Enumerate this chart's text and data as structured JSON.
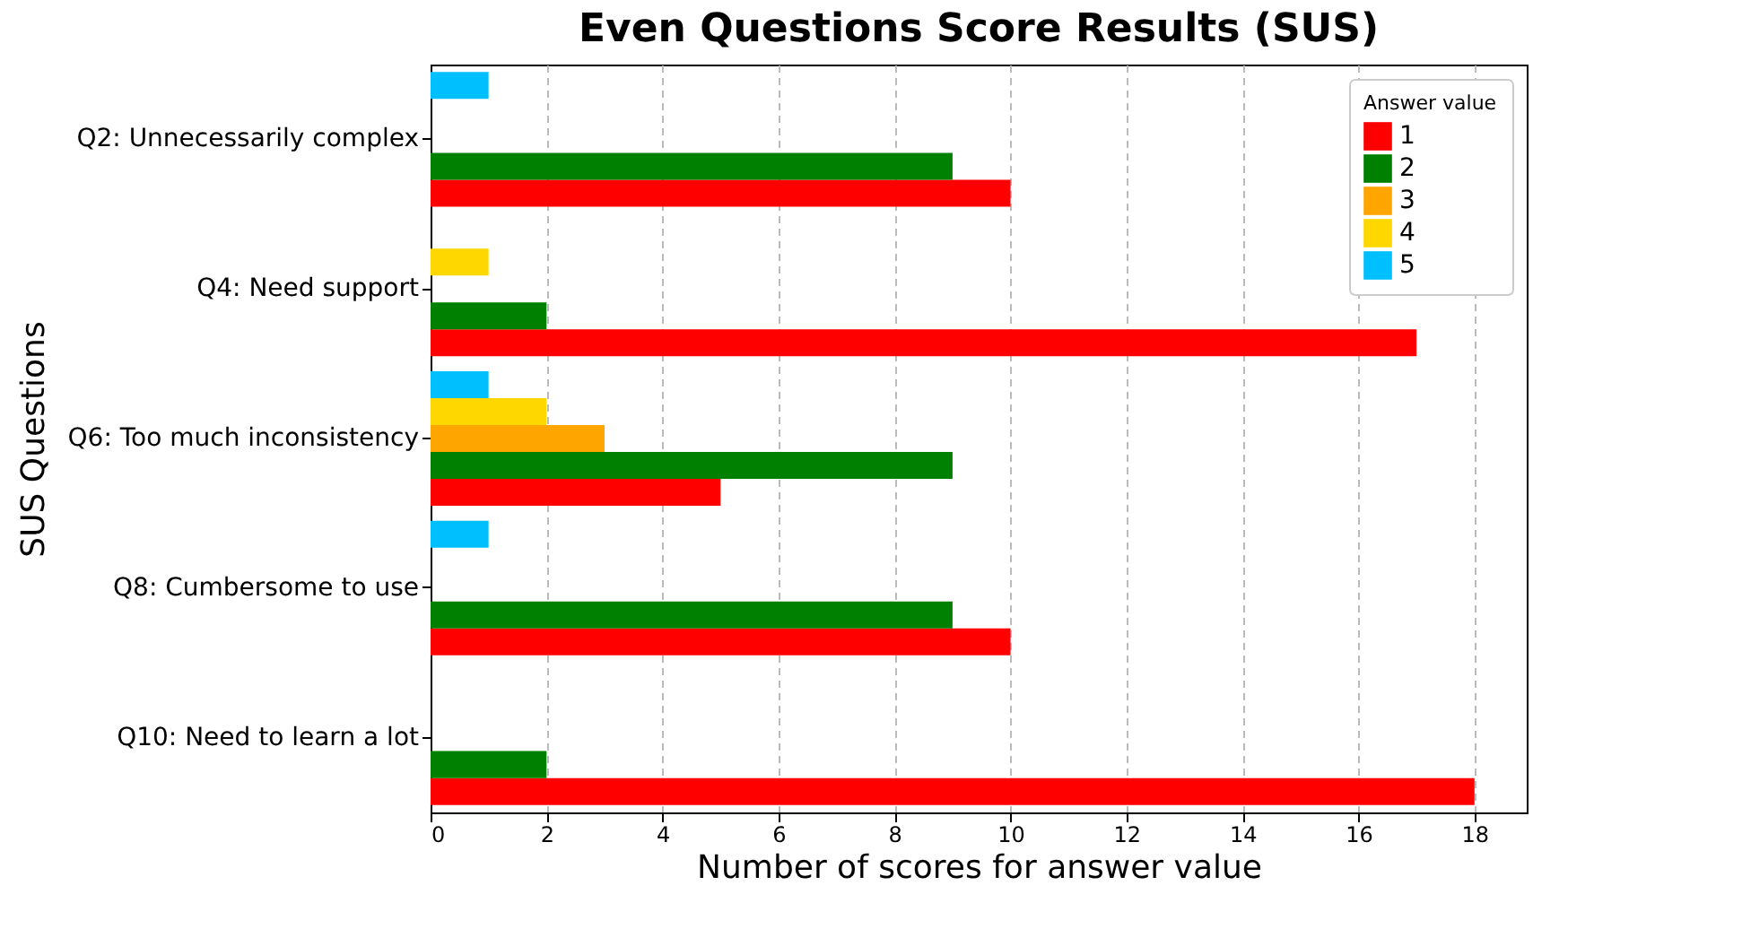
{
  "chart_data": {
    "type": "bar",
    "orientation": "horizontal",
    "title": "Even Questions Score Results (SUS)",
    "xlabel": "Number of scores for answer value",
    "ylabel": "SUS Questions",
    "legend_title": "Answer value",
    "categories": [
      "Q2: Unnecessarily complex",
      "Q4: Need support",
      "Q6: Too much inconsistency",
      "Q8: Cumbersome to use",
      "Q10: Need to learn a lot"
    ],
    "series": [
      {
        "name": "1",
        "color": "#ff0000",
        "values": [
          10,
          17,
          5,
          10,
          18
        ]
      },
      {
        "name": "2",
        "color": "#008000",
        "values": [
          9,
          2,
          9,
          9,
          2
        ]
      },
      {
        "name": "3",
        "color": "#ffa500",
        "values": [
          0,
          0,
          3,
          0,
          0
        ]
      },
      {
        "name": "4",
        "color": "#ffd700",
        "values": [
          0,
          1,
          2,
          0,
          0
        ]
      },
      {
        "name": "5",
        "color": "#00bfff",
        "values": [
          1,
          0,
          1,
          1,
          0
        ]
      }
    ],
    "xlim": [
      0,
      18.9
    ],
    "xticks": [
      0,
      2,
      4,
      6,
      8,
      10,
      12,
      14,
      16,
      18
    ],
    "grid": "x",
    "legend": "top right"
  }
}
